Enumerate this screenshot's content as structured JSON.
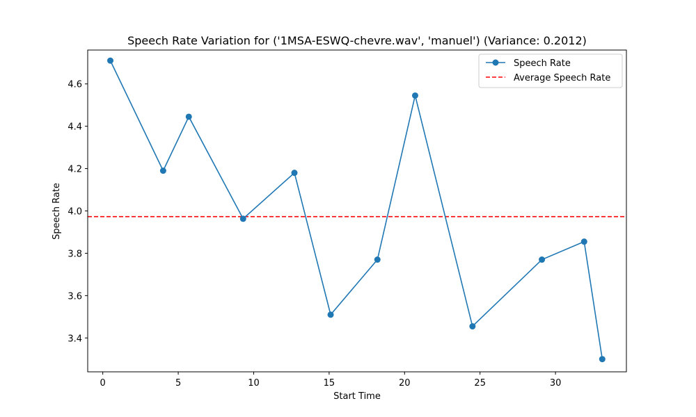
{
  "chart_data": {
    "type": "line",
    "title": "Speech Rate Variation for ('1MSA-ESWQ-chevre.wav', 'manuel') (Variance: 0.2012)",
    "xlabel": "Start Time",
    "ylabel": "Speech Rate",
    "xlim": [
      -1.0,
      34.7
    ],
    "ylim": [
      3.24,
      4.76
    ],
    "xticks": [
      0,
      5,
      10,
      15,
      20,
      25,
      30
    ],
    "yticks": [
      3.4,
      3.6,
      3.8,
      4.0,
      4.2,
      4.4,
      4.6
    ],
    "ytick_labels": [
      "3.4",
      "3.6",
      "3.8",
      "4.0",
      "4.2",
      "4.4",
      "4.6"
    ],
    "grid": false,
    "legend_position": "upper right",
    "series": [
      {
        "name": "Speech Rate",
        "color": "#1f77b4",
        "marker": "circle",
        "x": [
          0.5,
          4.0,
          5.7,
          9.3,
          12.7,
          15.1,
          18.2,
          20.7,
          24.5,
          29.1,
          31.9,
          33.1
        ],
        "y": [
          4.71,
          4.19,
          4.445,
          3.963,
          4.18,
          3.51,
          3.77,
          4.545,
          3.455,
          3.77,
          3.855,
          3.3
        ]
      }
    ],
    "reference_lines": [
      {
        "name": "Average Speech Rate",
        "orientation": "horizontal",
        "y": 3.973,
        "color": "#ff0000",
        "style": "dashed"
      }
    ]
  }
}
